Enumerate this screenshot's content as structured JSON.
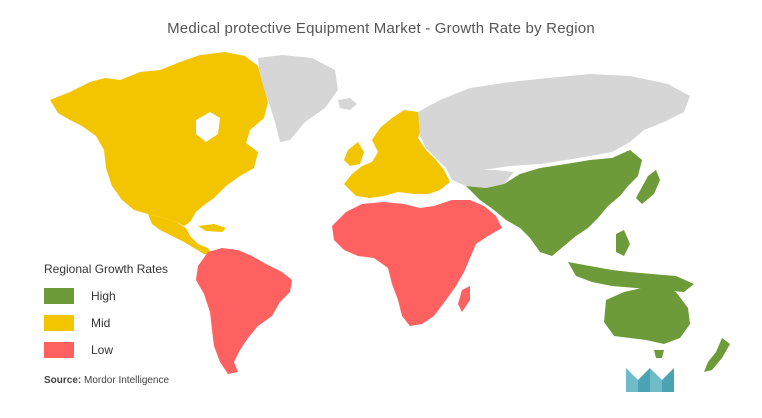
{
  "title": "Medical protective Equipment Market - Growth Rate by Region",
  "colors": {
    "high": "#6d9b3a",
    "mid": "#f2c500",
    "low": "#ff6161",
    "no_data": "#d6d6d6",
    "logo": "#6fbcc8"
  },
  "legend": {
    "title": "Regional Growth Rates",
    "items": [
      {
        "label": "High",
        "color": "#6d9b3a"
      },
      {
        "label": "Mid",
        "color": "#f2c500"
      },
      {
        "label": "Low",
        "color": "#ff6161"
      }
    ]
  },
  "regions": [
    {
      "name": "North America",
      "rate": "Mid"
    },
    {
      "name": "Europe",
      "rate": "Mid"
    },
    {
      "name": "Asia-Pacific",
      "rate": "High"
    },
    {
      "name": "South America",
      "rate": "Low"
    },
    {
      "name": "Middle East and Africa",
      "rate": "Low"
    }
  ],
  "source": {
    "prefix": "Source:",
    "text": "Mordor Intelligence"
  },
  "logo": "mordor-intelligence-logo"
}
